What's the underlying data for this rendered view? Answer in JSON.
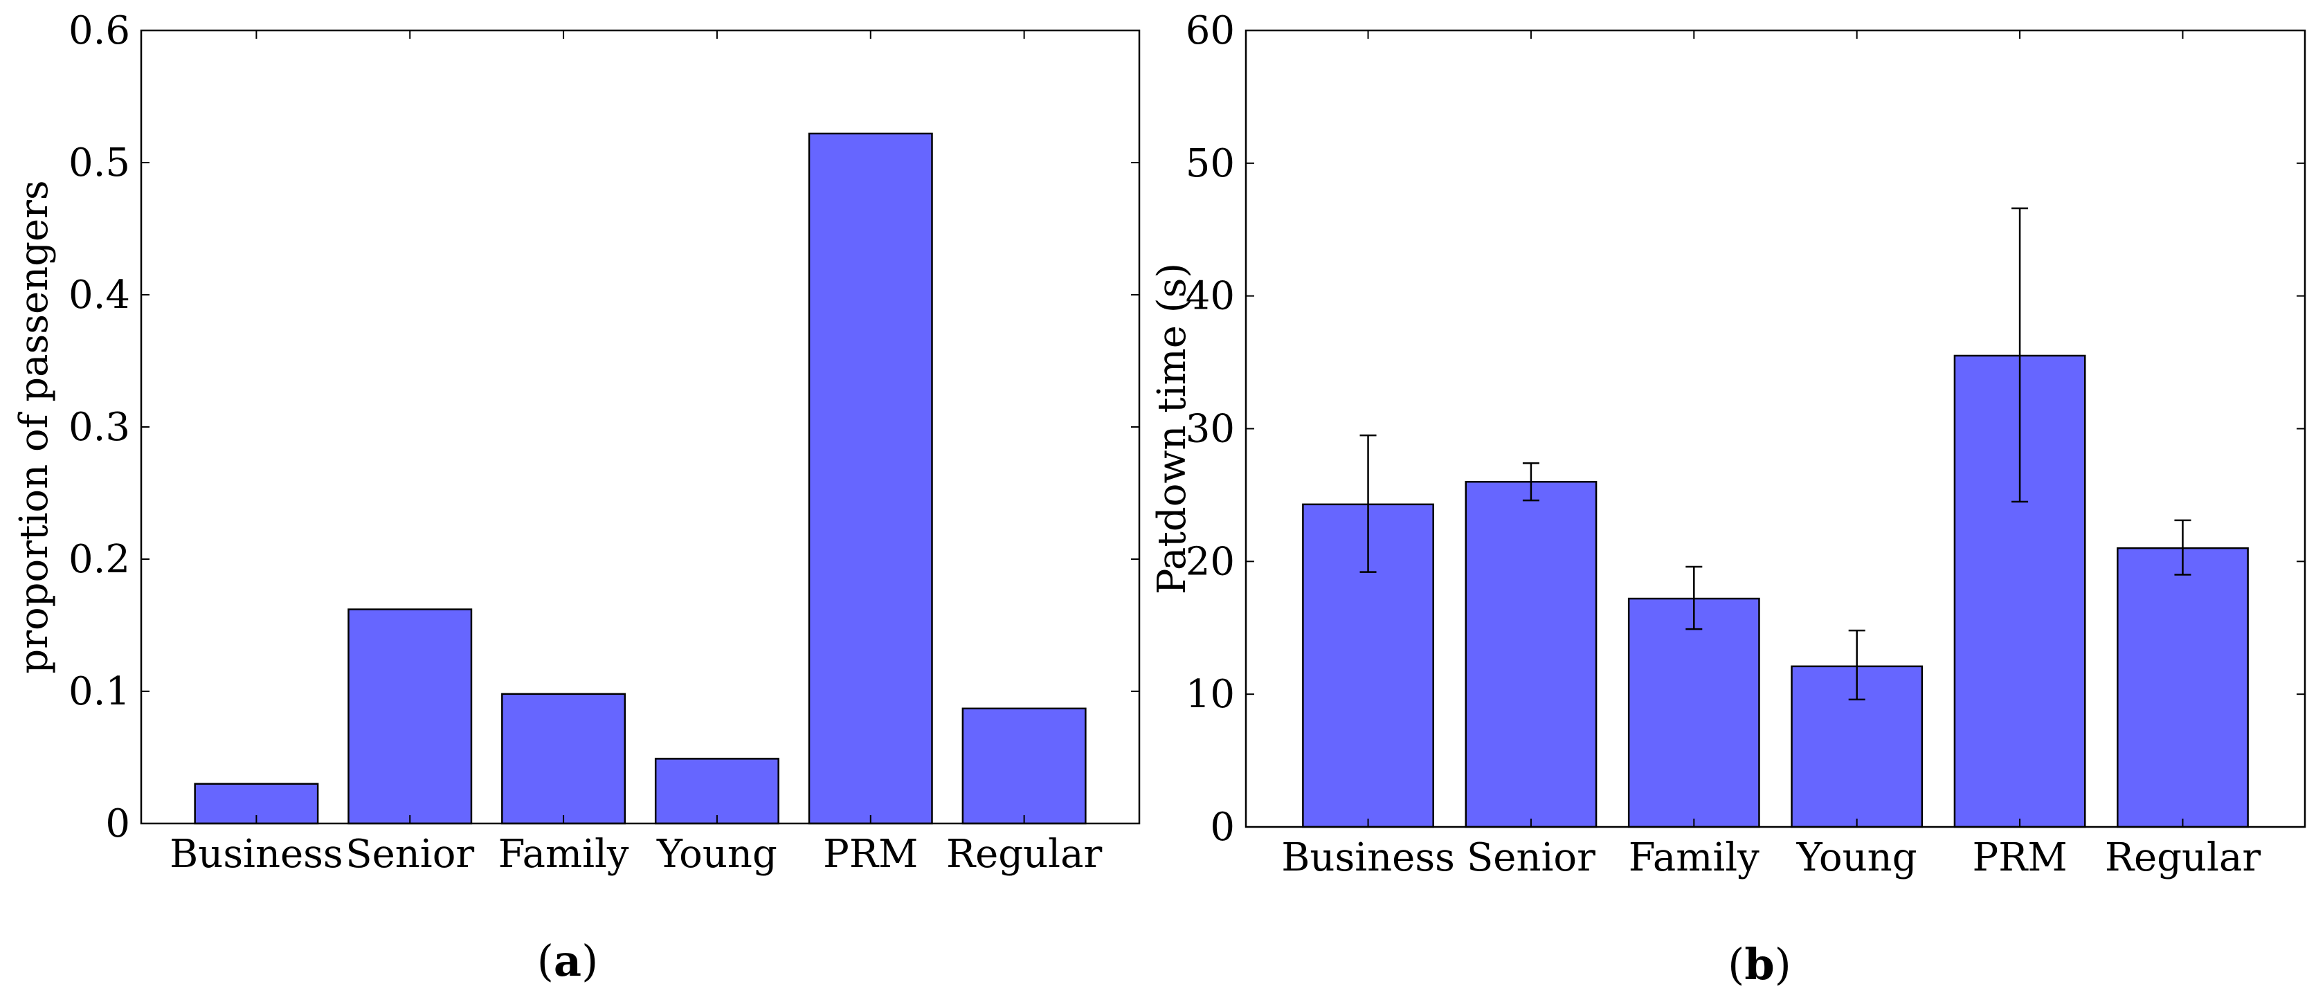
{
  "figure": {
    "bar_color": "#6666ff",
    "panels": [
      {
        "caption": {
          "open": "(",
          "letter": "a",
          "close": ")"
        },
        "chart_data": {
          "type": "bar",
          "title": "",
          "xlabel": "",
          "ylabel": "proportion of passengers",
          "categories": [
            "Business",
            "Senior",
            "Family",
            "Young",
            "PRM",
            "Regular"
          ],
          "values": [
            0.03,
            0.162,
            0.098,
            0.049,
            0.522,
            0.087
          ],
          "ylim": [
            0,
            0.6
          ],
          "yticks": [
            0,
            0.1,
            0.2,
            0.3,
            0.4,
            0.5,
            0.6
          ],
          "ytick_labels": [
            "0",
            "0.1",
            "0.2",
            "0.3",
            "0.4",
            "0.5",
            "0.6"
          ],
          "grid": false,
          "legend": "none"
        }
      },
      {
        "caption": {
          "open": "(",
          "letter": "b",
          "close": ")"
        },
        "chart_data": {
          "type": "bar",
          "title": "",
          "xlabel": "",
          "ylabel": "Patdown time (s)",
          "categories": [
            "Business",
            "Senior",
            "Family",
            "Young",
            "PRM",
            "Regular"
          ],
          "values": [
            24.3,
            26.0,
            17.2,
            12.1,
            35.5,
            21.0
          ],
          "error_low": [
            19.2,
            24.6,
            14.9,
            9.6,
            24.5,
            19.0
          ],
          "error_high": [
            29.5,
            27.4,
            19.6,
            14.8,
            46.6,
            23.1
          ],
          "ylim": [
            0,
            60
          ],
          "yticks": [
            0,
            10,
            20,
            30,
            40,
            50,
            60
          ],
          "ytick_labels": [
            "0",
            "10",
            "20",
            "30",
            "40",
            "50",
            "60"
          ],
          "grid": false,
          "legend": "none"
        }
      }
    ]
  }
}
